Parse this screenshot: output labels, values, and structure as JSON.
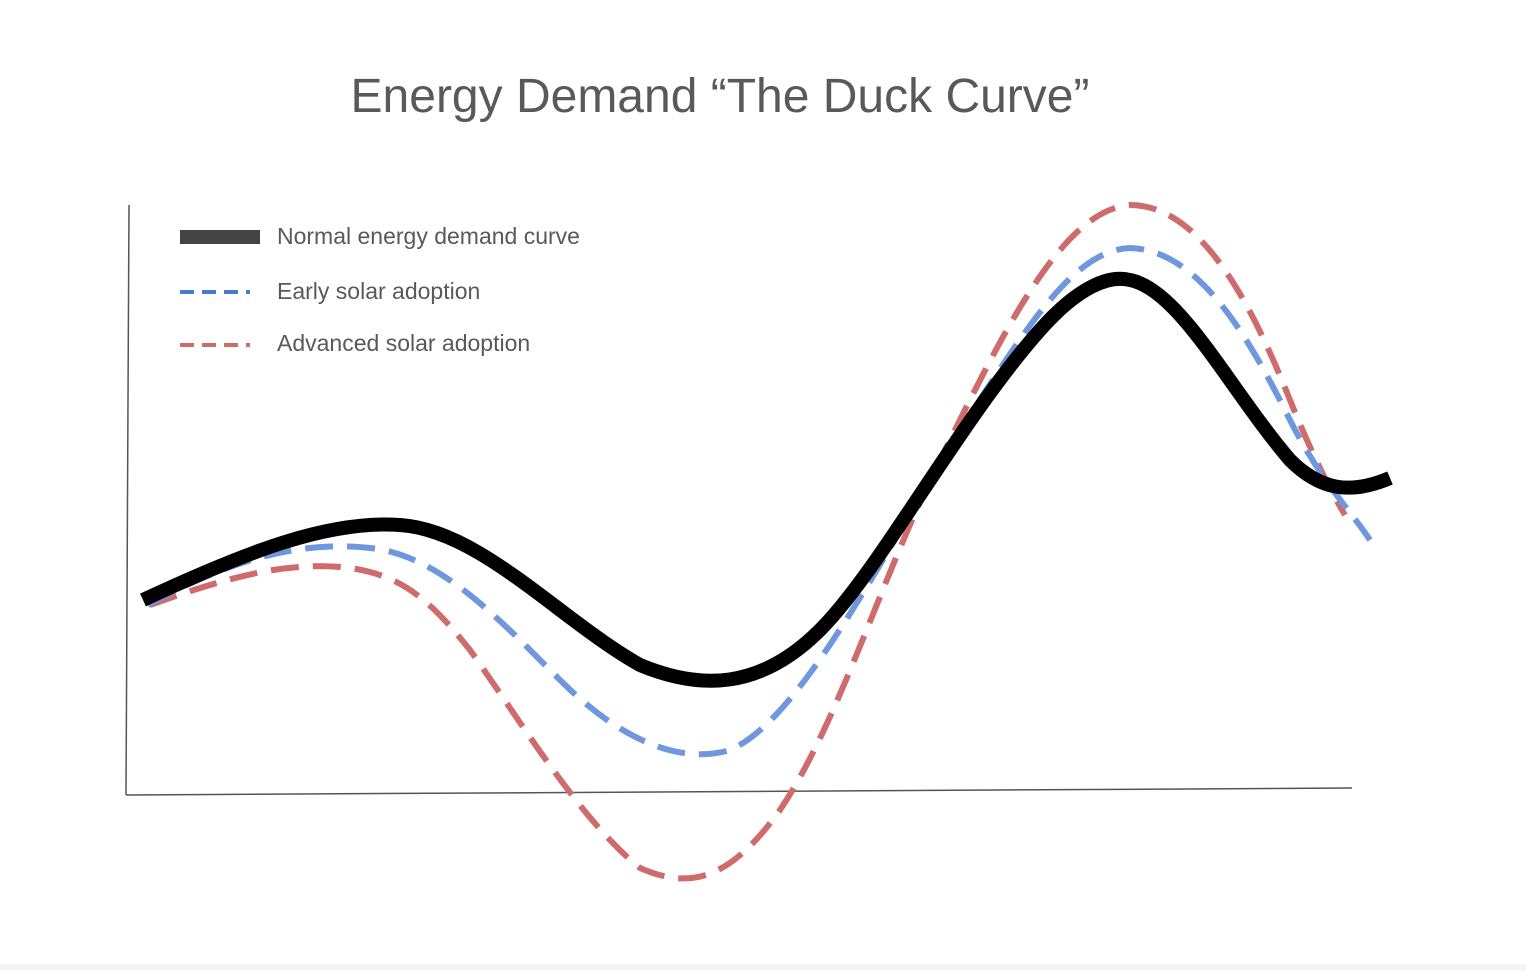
{
  "title": "Energy Demand “The Duck Curve”",
  "legend": {
    "items": [
      {
        "label": "Normal energy demand curve"
      },
      {
        "label": "Early solar adoption"
      },
      {
        "label": "Advanced solar adoption"
      }
    ]
  }
}
